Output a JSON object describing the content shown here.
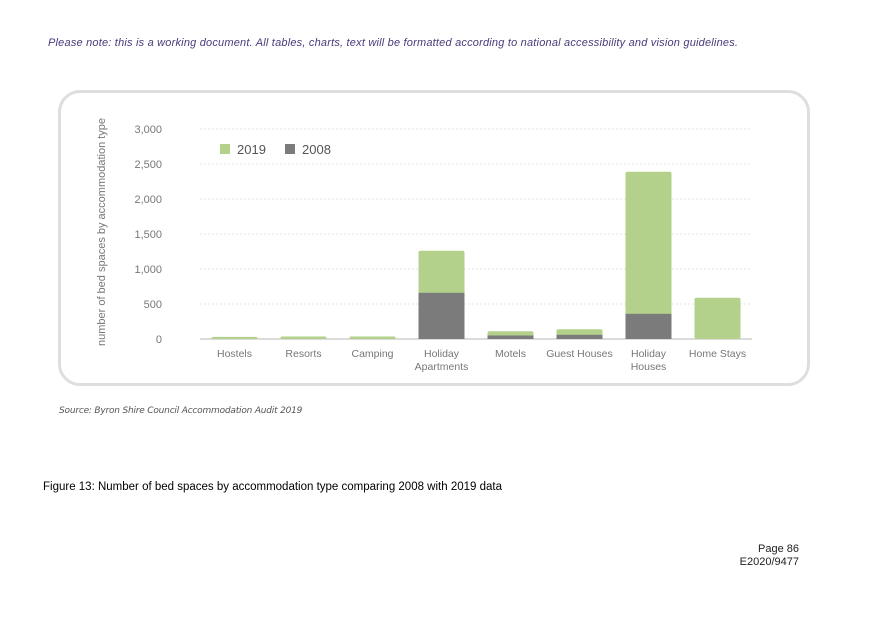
{
  "note": "Please note: this is a working document. All tables, charts, text will be formatted according to national accessibility and vision guidelines.",
  "source": "Source: Byron Shire Council Accommodation Audit 2019",
  "caption": "Figure 13: Number of bed spaces by accommodation type comparing 2008 with 2019 data",
  "page_number": "Page 86",
  "doc_ref": "E2020/9477",
  "colors": {
    "series_2019": "#b3d18a",
    "series_2008": "#7b7b7b",
    "grid": "#e6e6e6",
    "axis_text": "#777777",
    "frame": "#dedede"
  },
  "chart_data": {
    "type": "bar",
    "categories": [
      [
        "Hostels"
      ],
      [
        "Resorts"
      ],
      [
        "Camping"
      ],
      [
        "Holiday",
        "Apartments"
      ],
      [
        "Motels"
      ],
      [
        "Guest Houses"
      ],
      [
        "Holiday",
        "Houses"
      ],
      [
        "Home Stays"
      ]
    ],
    "series": [
      {
        "name": "2019",
        "values": [
          30,
          35,
          35,
          1260,
          110,
          140,
          2390,
          590
        ]
      },
      {
        "name": "2008",
        "values": [
          0,
          0,
          0,
          660,
          50,
          60,
          360,
          0
        ]
      }
    ],
    "overlay": true,
    "ylabel": "number of bed spaces by accommodation type",
    "xlabel": "",
    "ylim": [
      0,
      3000
    ],
    "yticks": [
      "0",
      "500",
      "1,000",
      "1,500",
      "2,000",
      "2,500",
      "3,000"
    ],
    "ytick_values": [
      0,
      500,
      1000,
      1500,
      2000,
      2500,
      3000
    ],
    "grid": true,
    "legend_position": "top-left"
  }
}
